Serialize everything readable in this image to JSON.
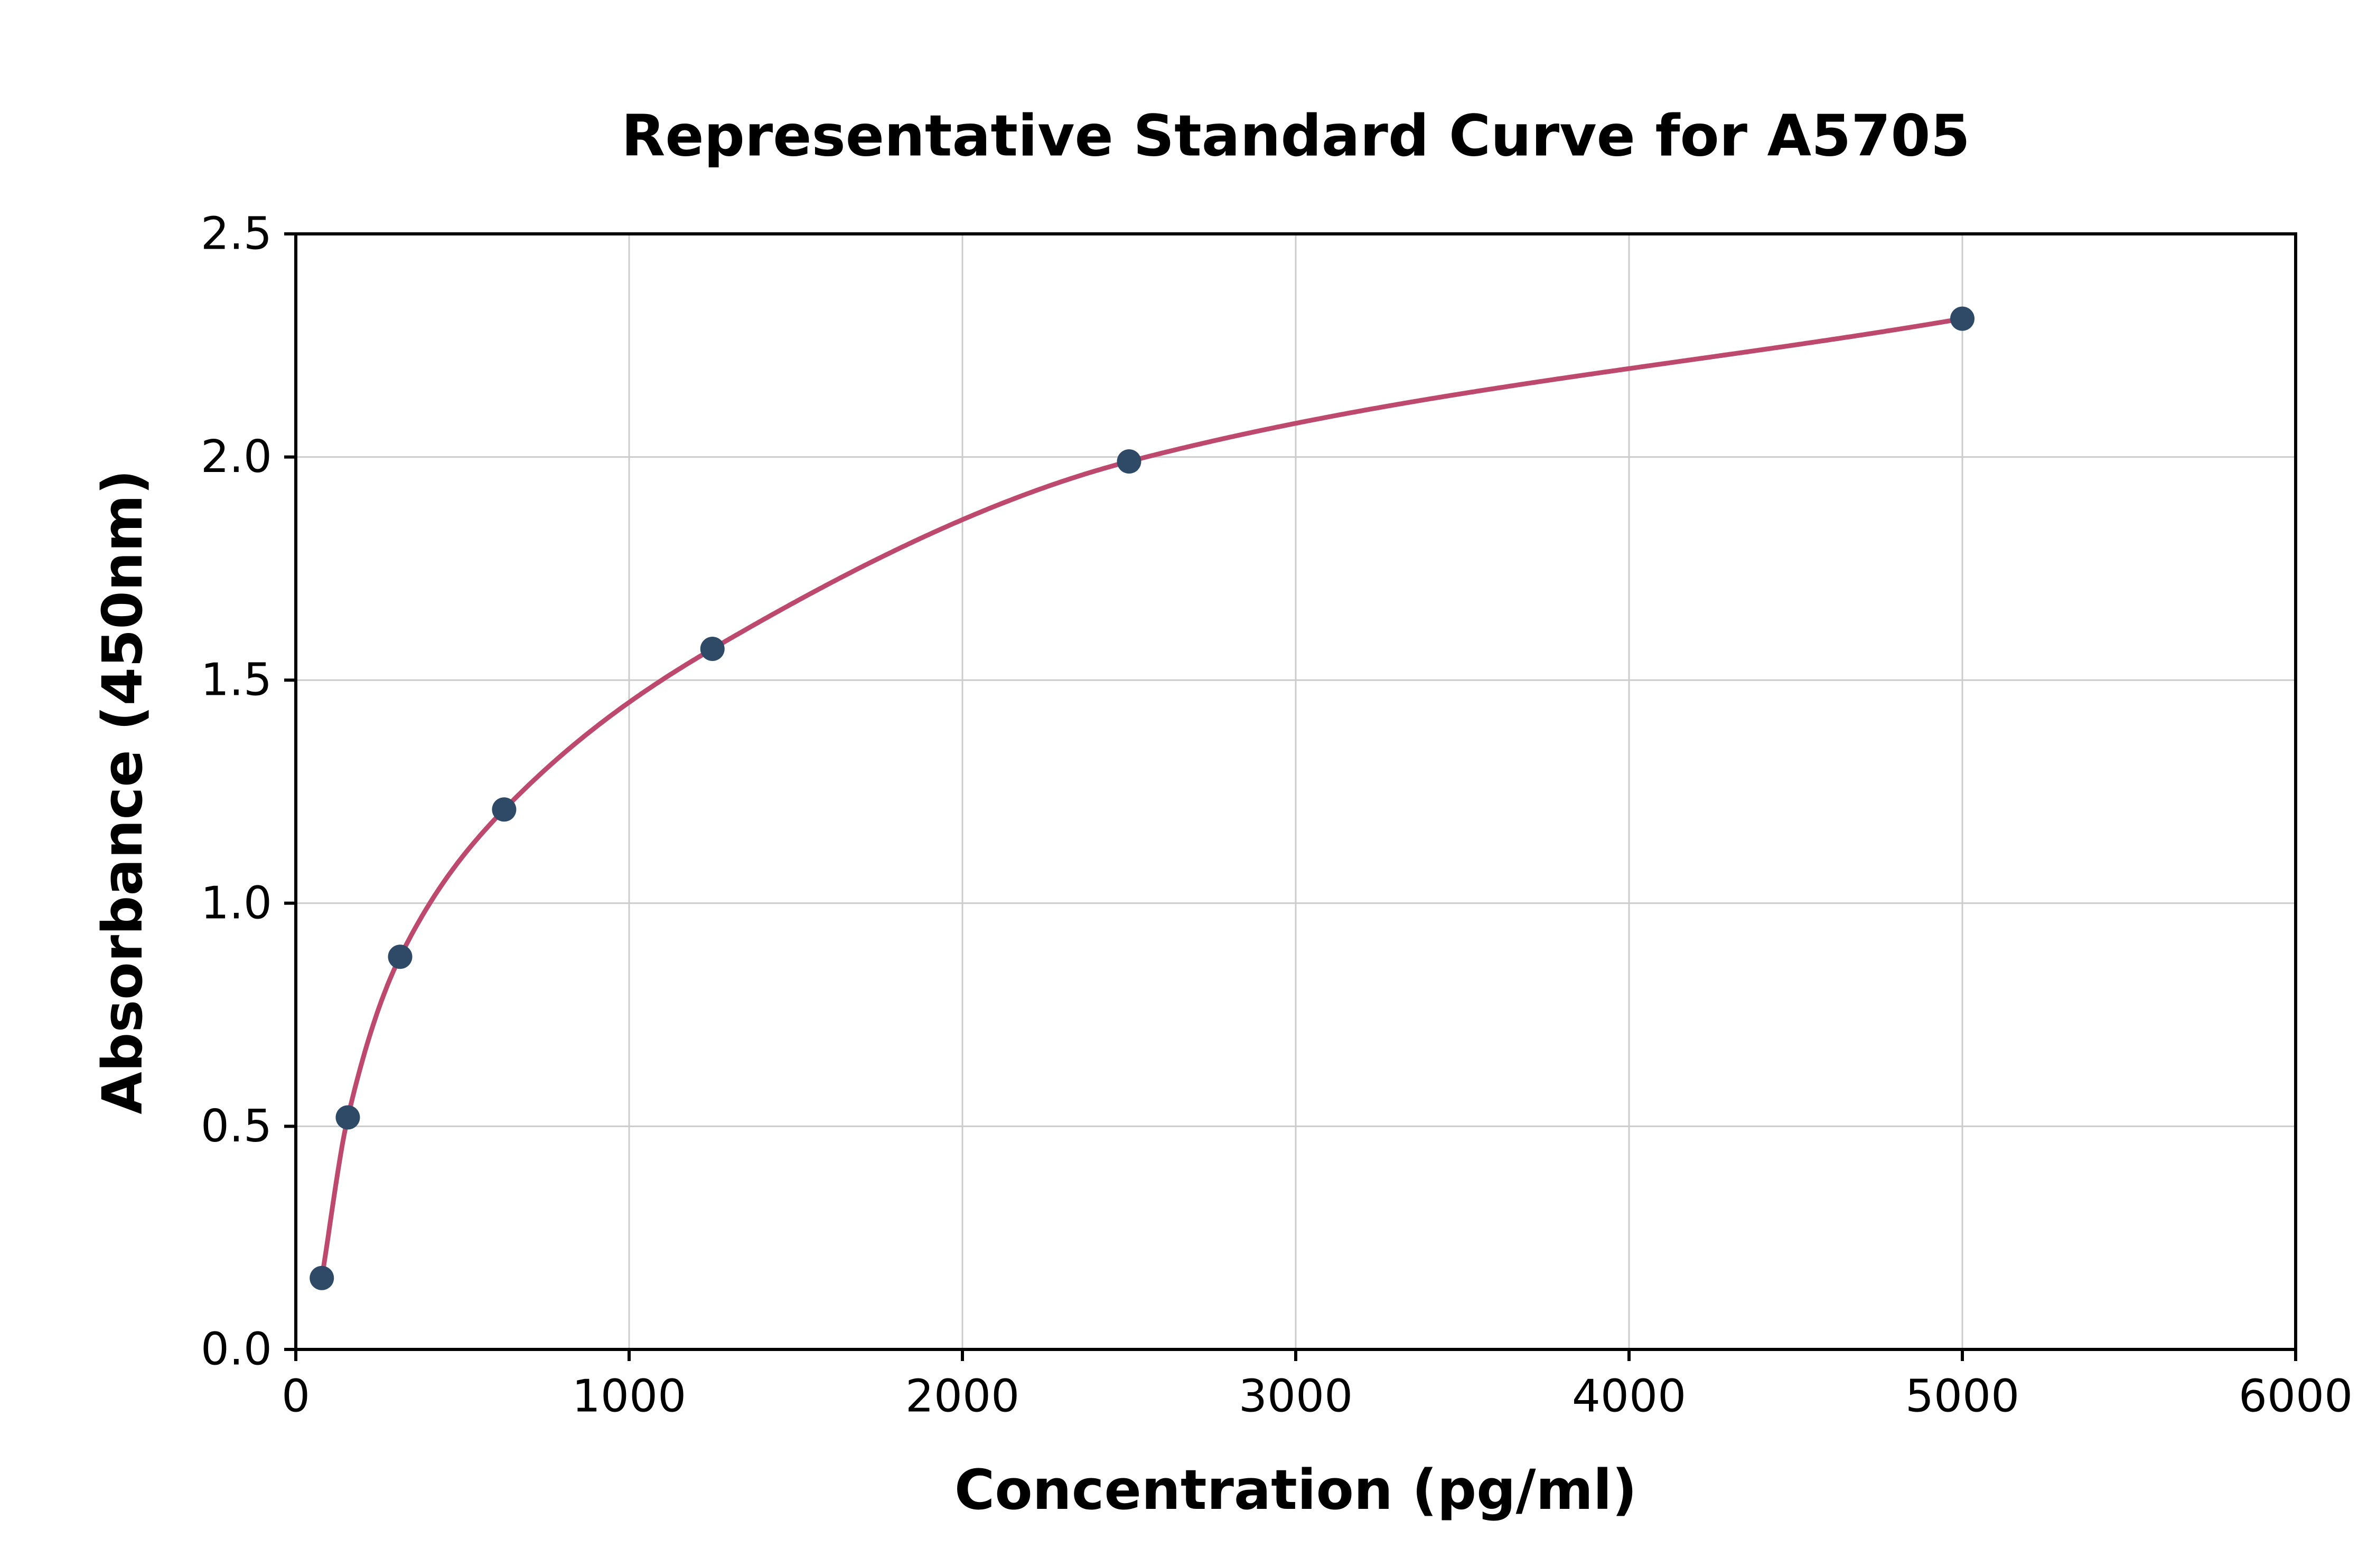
{
  "chart_data": {
    "type": "scatter",
    "title": "Representative Standard Curve for A5705",
    "xlabel": "Concentration (pg/ml)",
    "ylabel": "Absorbance (450nm)",
    "xlim": [
      0,
      6000
    ],
    "ylim": [
      0,
      2.5
    ],
    "x_ticks": [
      0,
      1000,
      2000,
      3000,
      4000,
      5000,
      6000
    ],
    "y_ticks": [
      0.0,
      0.5,
      1.0,
      1.5,
      2.0,
      2.5
    ],
    "grid": true,
    "legend": false,
    "points": {
      "name": "standards",
      "x": [
        78,
        156,
        313,
        625,
        1250,
        2500,
        5000
      ],
      "y": [
        0.16,
        0.52,
        0.88,
        1.21,
        1.57,
        1.99,
        2.31
      ]
    },
    "fit_curve": {
      "name": "4pl-fit-curve",
      "style": "smooth-through-points"
    },
    "colors": {
      "points": "#2e4a66",
      "curve": "#bd4a6e",
      "grid": "#cccccc",
      "axis": "#000000",
      "background": "#ffffff"
    }
  }
}
